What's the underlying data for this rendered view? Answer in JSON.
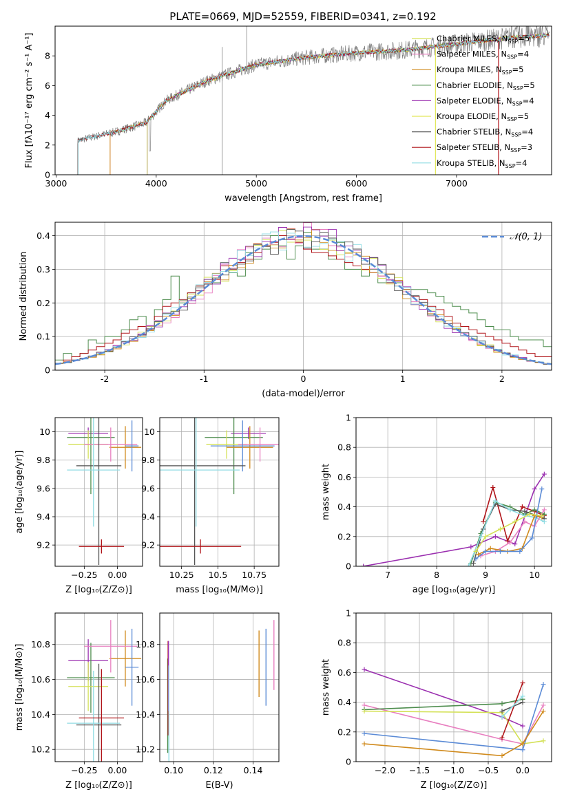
{
  "figure": {
    "title": "PLATE=0669, MJD=52559, FIBERID=0341, z=0.192"
  },
  "chart_data": [
    {
      "id": "spectrum",
      "type": "line",
      "xlabel": "wavelength [Angstrom, rest frame]",
      "ylabel": "Flux [fλ10⁻¹⁷ erg cm⁻² s⁻¹ A⁻¹]",
      "xlim": [
        2990,
        7950
      ],
      "ylim": [
        0,
        10
      ],
      "xticks": [
        3000,
        4000,
        5000,
        6000,
        7000
      ],
      "yticks": [
        0,
        2,
        4,
        6,
        8
      ],
      "grid": false,
      "legend": "upper-right",
      "data_color": "#808080",
      "data_x_range": [
        3215,
        7930
      ],
      "data_continuum": [
        [
          3215,
          2.3
        ],
        [
          3600,
          2.9
        ],
        [
          3900,
          3.5
        ],
        [
          4100,
          5.0
        ],
        [
          4500,
          6.3
        ],
        [
          5000,
          7.4
        ],
        [
          5500,
          7.9
        ],
        [
          6000,
          8.2
        ],
        [
          6500,
          8.4
        ],
        [
          7000,
          8.8
        ],
        [
          7500,
          9.2
        ],
        [
          7930,
          9.4
        ]
      ],
      "models": [
        {
          "name": "Chabrier MILES, N_SSP=5",
          "color": "#d4e157",
          "start": 3540
        },
        {
          "name": "Salpeter MILES, N_SSP=4",
          "color": "#e87fc0",
          "start": 3540
        },
        {
          "name": "Kroupa MILES, N_SSP=5",
          "color": "#d08a1c",
          "start": 3540
        },
        {
          "name": "Chabrier ELODIE, N_SSP=5",
          "color": "#4e8d4e",
          "start": 3910
        },
        {
          "name": "Salpeter ELODIE, N_SSP=4",
          "color": "#9b30b0",
          "start": 3910
        },
        {
          "name": "Kroupa ELODIE, N_SSP=5",
          "color": "#e2e85a",
          "start": 3910
        },
        {
          "name": "Chabrier STELIB, N_SSP=4",
          "color": "#555555",
          "start": 3220
        },
        {
          "name": "Salpeter STELIB, N_SSP=3",
          "color": "#b0151a",
          "start": 3220
        },
        {
          "name": "Kroupa STELIB, N_SSP=4",
          "color": "#8fdce3",
          "start": 3220
        }
      ]
    },
    {
      "id": "residuals",
      "type": "bar",
      "xlabel": "(data-model)/error",
      "ylabel": "Normed distribution",
      "xlim": [
        -2.5,
        2.5
      ],
      "ylim": [
        0,
        0.44
      ],
      "xticks": [
        -2,
        -1,
        0,
        1,
        2
      ],
      "yticks": [
        0.0,
        0.1,
        0.2,
        0.3,
        0.4
      ],
      "grid": true,
      "legend": "upper-right",
      "gaussian_label": "𝒩(0, 1)",
      "gaussian_color": "#5b8bd6",
      "bin_edges_start": -2.5,
      "bin_width": 0.1,
      "histograms": [
        {
          "color": "#4e8d4e",
          "values": [
            0.03,
            0.05,
            0.04,
            0.05,
            0.09,
            0.08,
            0.1,
            0.1,
            0.12,
            0.15,
            0.16,
            0.13,
            0.18,
            0.21,
            0.28,
            0.2,
            0.23,
            0.25,
            0.27,
            0.26,
            0.32,
            0.29,
            0.28,
            0.35,
            0.33,
            0.36,
            0.4,
            0.37,
            0.33,
            0.37,
            0.41,
            0.36,
            0.36,
            0.33,
            0.38,
            0.3,
            0.3,
            0.28,
            0.3,
            0.26,
            0.27,
            0.26,
            0.24,
            0.24,
            0.24,
            0.23,
            0.22,
            0.2,
            0.19,
            0.18,
            0.17,
            0.15,
            0.13,
            0.12,
            0.12,
            0.1,
            0.09,
            0.09,
            0.09,
            0.07
          ]
        },
        {
          "color": "#b0151a",
          "values": [
            0.02,
            0.03,
            0.04,
            0.05,
            0.06,
            0.07,
            0.08,
            0.09,
            0.11,
            0.12,
            0.13,
            0.12,
            0.16,
            0.19,
            0.2,
            0.21,
            0.23,
            0.25,
            0.26,
            0.27,
            0.31,
            0.3,
            0.32,
            0.33,
            0.35,
            0.37,
            0.38,
            0.4,
            0.39,
            0.38,
            0.36,
            0.35,
            0.35,
            0.34,
            0.33,
            0.32,
            0.31,
            0.3,
            0.29,
            0.28,
            0.26,
            0.25,
            0.24,
            0.22,
            0.21,
            0.19,
            0.18,
            0.16,
            0.14,
            0.13,
            0.12,
            0.11,
            0.1,
            0.09,
            0.08,
            0.07,
            0.06,
            0.05,
            0.04,
            0.04
          ]
        }
      ]
    },
    {
      "id": "age-vs-Z",
      "type": "scatter",
      "xlabel": "Z [log₁₀(Z/Z⊙)]",
      "ylabel": "age  [log₁₀(age/yr)]",
      "xlim": [
        -0.47,
        0.19
      ],
      "ylim": [
        9.05,
        10.1
      ],
      "xticks": [
        -0.25,
        0.0
      ],
      "xticklabels": [
        "−0.25",
        "0.00"
      ],
      "yticks": [
        9.2,
        9.4,
        9.6,
        9.8,
        10.0
      ],
      "grid": true
    },
    {
      "id": "age-vs-mass",
      "type": "scatter",
      "xlabel": "mass [log₁₀(M/M⊙)]",
      "xlim": [
        10.1,
        10.92
      ],
      "ylim": [
        9.05,
        10.1
      ],
      "xticks": [
        10.25,
        10.5,
        10.75
      ],
      "yticks": [
        9.2,
        9.4,
        9.6,
        9.8,
        10.0
      ],
      "grid": true
    },
    {
      "id": "weight-vs-age",
      "type": "line",
      "xlabel": "age  [log₁₀(age/yr)]",
      "ylabel": "mass weight",
      "xlim": [
        6.35,
        10.35
      ],
      "ylim": [
        0,
        1
      ],
      "xticks": [
        7,
        8,
        9,
        10
      ],
      "yticks": [
        0.0,
        0.2,
        0.4,
        0.6,
        0.8,
        1.0
      ],
      "grid": true,
      "series": [
        {
          "color": "#9b30b0",
          "x": [
            6.5,
            8.7,
            9.2,
            9.6,
            10.0,
            10.2
          ],
          "y": [
            0.0,
            0.13,
            0.2,
            0.15,
            0.52,
            0.62
          ]
        },
        {
          "color": "#b0151a",
          "x": [
            8.95,
            9.15,
            9.45,
            9.75,
            10.0,
            10.2
          ],
          "y": [
            0.3,
            0.53,
            0.17,
            0.4,
            0.37,
            0.34
          ]
        },
        {
          "color": "#4e8d4e",
          "x": [
            8.7,
            8.9,
            9.2,
            9.5,
            9.8,
            10.0,
            10.2
          ],
          "y": [
            0.02,
            0.22,
            0.43,
            0.4,
            0.35,
            0.38,
            0.35
          ]
        },
        {
          "color": "#555555",
          "x": [
            8.75,
            8.95,
            9.2,
            9.5,
            9.8,
            10.05,
            10.2
          ],
          "y": [
            0.02,
            0.25,
            0.42,
            0.38,
            0.37,
            0.34,
            0.32
          ]
        },
        {
          "color": "#8fdce3",
          "x": [
            8.65,
            8.9,
            9.2,
            9.5,
            9.8,
            10.0,
            10.2
          ],
          "y": [
            0.0,
            0.2,
            0.44,
            0.38,
            0.34,
            0.33,
            0.3
          ]
        },
        {
          "color": "#e87fc0",
          "x": [
            8.9,
            9.2,
            9.5,
            9.8,
            10.0,
            10.2
          ],
          "y": [
            0.07,
            0.1,
            0.16,
            0.3,
            0.27,
            0.38
          ]
        },
        {
          "color": "#d08a1c",
          "x": [
            8.85,
            9.1,
            9.45,
            9.75,
            10.0,
            10.15
          ],
          "y": [
            0.08,
            0.12,
            0.1,
            0.12,
            0.34,
            0.33
          ]
        },
        {
          "color": "#5b8bd6",
          "x": [
            8.8,
            9.0,
            9.3,
            9.7,
            9.95,
            10.15
          ],
          "y": [
            0.05,
            0.1,
            0.1,
            0.1,
            0.19,
            0.52
          ]
        },
        {
          "color": "#d4e157",
          "x": [
            8.8,
            9.0,
            9.3,
            9.6,
            9.9,
            10.15
          ],
          "y": [
            0.1,
            0.2,
            0.25,
            0.3,
            0.35,
            0.34
          ]
        }
      ]
    },
    {
      "id": "mass-vs-Z",
      "type": "scatter",
      "xlabel": "Z [log₁₀(Z/Z⊙)]",
      "ylabel": "mass [log₁₀(M/M⊙)]",
      "xlim": [
        -0.47,
        0.19
      ],
      "ylim": [
        10.13,
        10.98
      ],
      "xticks": [
        -0.25,
        0.0
      ],
      "xticklabels": [
        "−0.25",
        "0.00"
      ],
      "yticks": [
        10.2,
        10.4,
        10.6,
        10.8
      ],
      "grid": true
    },
    {
      "id": "mass-vs-EBV",
      "type": "scatter",
      "xlabel": "E(B-V)",
      "xlim": [
        0.093,
        0.153
      ],
      "ylim": [
        10.13,
        10.98
      ],
      "xticks": [
        0.1,
        0.12,
        0.14
      ],
      "xticklabels": [
        "0.10",
        "0.12",
        "0.14"
      ],
      "yticks": [
        10.2,
        10.4,
        10.6,
        10.8
      ],
      "grid": true,
      "points": [
        {
          "color": "#4e8d4e",
          "x": 0.097,
          "y": 10.45,
          "err": 0.27
        },
        {
          "color": "#b0151a",
          "x": 0.0972,
          "y": 10.55,
          "err": 0.27
        },
        {
          "color": "#9b30b0",
          "x": 0.0974,
          "y": 10.62,
          "err": 0.2
        },
        {
          "color": "#8fdce3",
          "x": 0.0976,
          "y": 10.4,
          "err": 0.28
        },
        {
          "color": "#d08a1c",
          "x": 0.143,
          "y": 10.69,
          "err": 0.19
        },
        {
          "color": "#5b8bd6",
          "x": 0.1465,
          "y": 10.67,
          "err": 0.22
        },
        {
          "color": "#e87fc0",
          "x": 0.1505,
          "y": 10.74,
          "err": 0.2
        }
      ]
    },
    {
      "id": "weight-vs-Z",
      "type": "line",
      "xlabel": "Z [log₁₀(Z/Z⊙)]",
      "ylabel": "mass weight",
      "xlim": [
        -2.42,
        0.42
      ],
      "ylim": [
        0,
        1
      ],
      "xticks": [
        -2.0,
        -1.5,
        -1.0,
        -0.5,
        0.0
      ],
      "xticklabels": [
        "−2.0",
        "−1.5",
        "−1.0",
        "−0.5",
        "0.0"
      ],
      "yticks": [
        0.0,
        0.2,
        0.4,
        0.6,
        0.8,
        1.0
      ],
      "grid": true,
      "series": [
        {
          "color": "#9b30b0",
          "x": [
            -2.3,
            -0.3,
            0.0
          ],
          "y": [
            0.62,
            0.3,
            0.24
          ]
        },
        {
          "color": "#e87fc0",
          "x": [
            -2.3,
            -0.3,
            0.0,
            0.3
          ],
          "y": [
            0.38,
            0.15,
            0.12,
            0.38
          ]
        },
        {
          "color": "#4e8d4e",
          "x": [
            -2.3,
            -0.3,
            0.0
          ],
          "y": [
            0.35,
            0.39,
            0.42
          ]
        },
        {
          "color": "#d4e157",
          "x": [
            -2.3,
            -0.3,
            0.0,
            0.3
          ],
          "y": [
            0.34,
            0.33,
            0.12,
            0.14
          ]
        },
        {
          "color": "#5b8bd6",
          "x": [
            -2.3,
            0.0,
            0.3
          ],
          "y": [
            0.19,
            0.08,
            0.52
          ]
        },
        {
          "color": "#d08a1c",
          "x": [
            -2.3,
            -0.3,
            0.0,
            0.3
          ],
          "y": [
            0.12,
            0.04,
            0.12,
            0.34
          ]
        },
        {
          "color": "#b0151a",
          "x": [
            -0.3,
            0.0
          ],
          "y": [
            0.16,
            0.53
          ]
        },
        {
          "color": "#555555",
          "x": [
            -0.3,
            0.0
          ],
          "y": [
            0.34,
            0.4
          ]
        },
        {
          "color": "#8fdce3",
          "x": [
            -0.3,
            0.0
          ],
          "y": [
            0.3,
            0.44
          ]
        }
      ]
    }
  ],
  "point_sets": {
    "Z_age_mass": [
      {
        "color": "#9b30b0",
        "Z": -0.22,
        "Zerr": 0.15,
        "age": 9.99,
        "ageerr": 0.04,
        "mass": 10.71,
        "masserr": 0.12
      },
      {
        "color": "#4e8d4e",
        "Z": -0.2,
        "Zerr": 0.18,
        "age": 9.96,
        "ageerr": 0.4,
        "mass": 10.61,
        "masserr": 0.2
      },
      {
        "color": "#d4e157",
        "Z": -0.22,
        "Zerr": 0.15,
        "age": 9.91,
        "ageerr": 0.1,
        "mass": 10.56,
        "masserr": 0.14
      },
      {
        "color": "#d08a1c",
        "Z": 0.06,
        "Zerr": 0.12,
        "age": 9.89,
        "ageerr": 0.15,
        "mass": 10.72,
        "masserr": 0.16
      },
      {
        "color": "#e87fc0",
        "Z": -0.05,
        "Zerr": 0.2,
        "age": 9.91,
        "ageerr": 0.12,
        "mass": 10.79,
        "masserr": 0.15
      },
      {
        "color": "#5b8bd6",
        "Z": 0.11,
        "Zerr": 0.05,
        "age": 9.9,
        "ageerr": 0.18,
        "mass": 10.67,
        "masserr": 0.22
      },
      {
        "color": "#555555",
        "Z": -0.14,
        "Zerr": 0.17,
        "age": 9.76,
        "ageerr": 0.7,
        "mass": 10.34,
        "masserr": 0.35
      },
      {
        "color": "#8fdce3",
        "Z": -0.18,
        "Zerr": 0.2,
        "age": 9.73,
        "ageerr": 0.4,
        "mass": 10.35,
        "masserr": 0.3
      },
      {
        "color": "#b0151a",
        "Z": -0.12,
        "Zerr": 0.17,
        "age": 9.19,
        "ageerr": 0.05,
        "mass": 10.38,
        "masserr": 0.28
      }
    ]
  }
}
